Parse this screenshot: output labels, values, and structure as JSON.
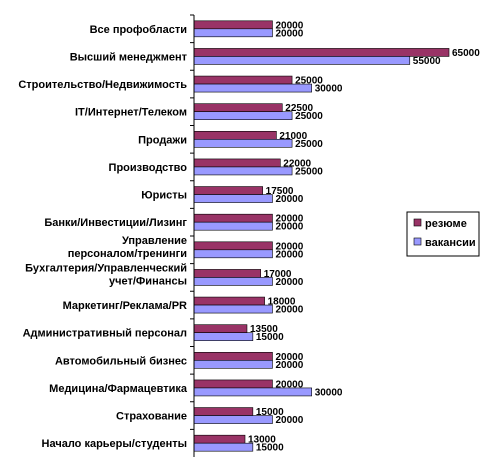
{
  "chart_data": {
    "type": "bar",
    "orientation": "horizontal",
    "categories": [
      "Все профобласти",
      "Высший менеджмент",
      "Строительство/Недвижимость",
      "IT/Интернет/Телеком",
      "Продажи",
      "Производство",
      "Юристы",
      "Банки/Инвестиции/Лизинг",
      "Управление персоналом/тренинги",
      "Бухгалтерия/Управленческий учет/Финансы",
      "Маркетинг/Реклама/PR",
      "Административный персонал",
      "Автомобильный бизнес",
      "Медицина/Фармацевтика",
      "Страхование",
      "Начало карьеры/студенты"
    ],
    "series": [
      {
        "name": "резюме",
        "color": "#993366",
        "values": [
          20000,
          65000,
          25000,
          22500,
          21000,
          22000,
          17500,
          20000,
          20000,
          17000,
          18000,
          13500,
          20000,
          20000,
          15000,
          13000
        ]
      },
      {
        "name": "вакансии",
        "color": "#9999FF",
        "values": [
          20000,
          55000,
          30000,
          25000,
          25000,
          25000,
          20000,
          20000,
          20000,
          20000,
          20000,
          15000,
          20000,
          30000,
          20000,
          15000
        ]
      }
    ],
    "xlim": [
      0,
      65000
    ],
    "legend_position": "right",
    "grid": false
  }
}
